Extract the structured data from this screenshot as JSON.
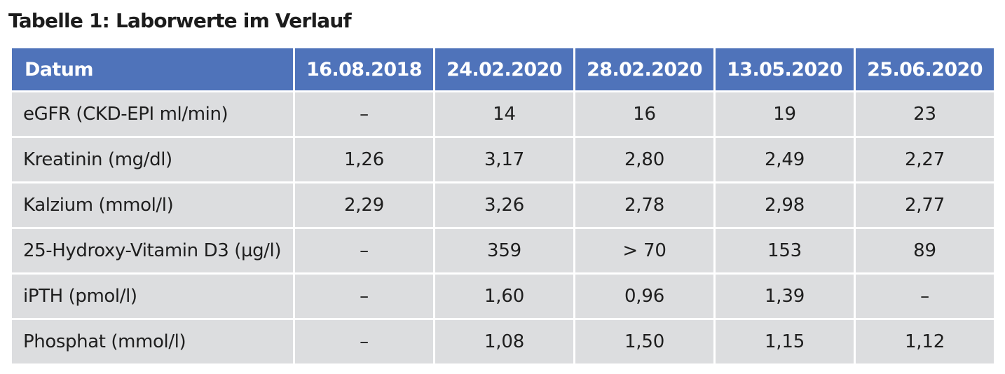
{
  "title": "Tabelle 1: Laborwerte im Verlauf",
  "table": {
    "header": [
      "Datum",
      "16.08.2018",
      "24.02.2020",
      "28.02.2020",
      "13.05.2020",
      "25.06.2020"
    ],
    "rows": [
      {
        "label": "eGFR (CKD-EPI ml/min)",
        "values": [
          "–",
          "14",
          "16",
          "19",
          "23"
        ]
      },
      {
        "label": "Kreatinin (mg/dl)",
        "values": [
          "1,26",
          "3,17",
          "2,80",
          "2,49",
          "2,27"
        ]
      },
      {
        "label": "Kalzium (mmol/l)",
        "values": [
          "2,29",
          "3,26",
          "2,78",
          "2,98",
          "2,77"
        ]
      },
      {
        "label": "25-Hydroxy-Vitamin D3 (µg/l)",
        "values": [
          "–",
          "359",
          "> 70",
          "153",
          "89"
        ]
      },
      {
        "label": "iPTH (pmol/l)",
        "values": [
          "–",
          "1,60",
          "0,96",
          "1,39",
          "–"
        ]
      },
      {
        "label": "Phosphat (mmol/l)",
        "values": [
          "–",
          "1,08",
          "1,50",
          "1,15",
          "1,12"
        ]
      }
    ]
  },
  "colors": {
    "header_bg": "#4f73ba",
    "cell_bg": "#dcdddf"
  }
}
